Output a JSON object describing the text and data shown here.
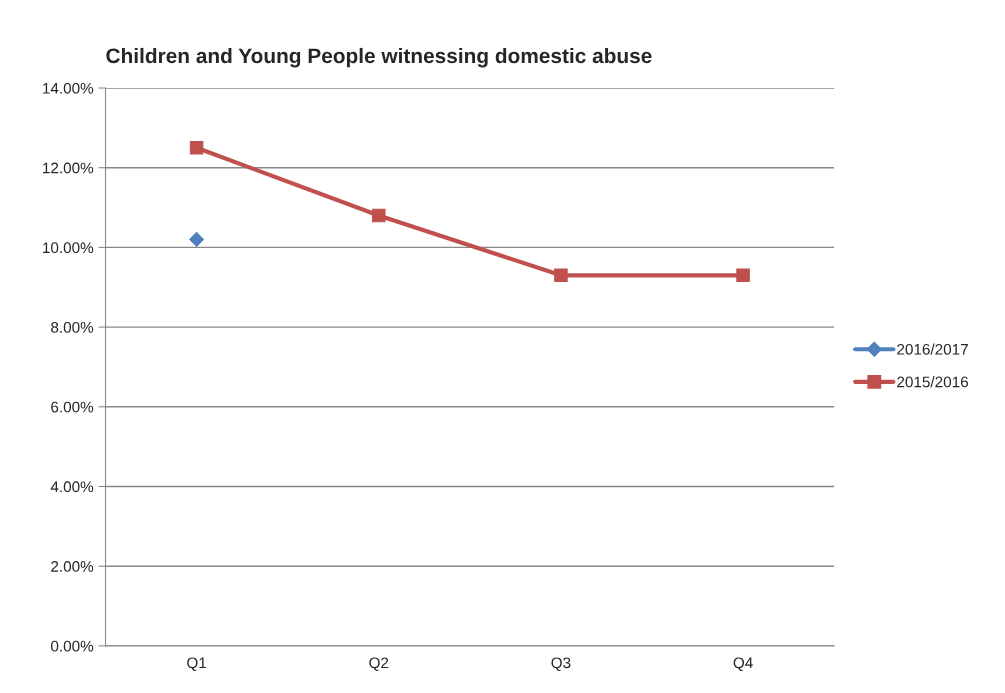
{
  "chart_data": {
    "type": "line",
    "title": "Children and Young People witnessing domestic abuse",
    "categories": [
      "Q1",
      "Q2",
      "Q3",
      "Q4"
    ],
    "series": [
      {
        "name": "2016/2017",
        "color": "#4f81bd",
        "marker": "diamond",
        "values": [
          10.2,
          null,
          null,
          null
        ]
      },
      {
        "name": "2015/2016",
        "color": "#c0504d",
        "marker": "square",
        "values": [
          12.5,
          10.8,
          9.3,
          9.3
        ]
      }
    ],
    "ylim": [
      0,
      14
    ],
    "yticks": [
      {
        "value": 0,
        "label": "0.00%"
      },
      {
        "value": 2,
        "label": "2.00%"
      },
      {
        "value": 4,
        "label": "4.00%"
      },
      {
        "value": 6,
        "label": "6.00%"
      },
      {
        "value": 8,
        "label": "8.00%"
      },
      {
        "value": 10,
        "label": "10.00%"
      },
      {
        "value": 12,
        "label": "12.00%"
      },
      {
        "value": 14,
        "label": "14.00%"
      }
    ],
    "grid": "y",
    "legend": "right",
    "line_style": "solid"
  }
}
